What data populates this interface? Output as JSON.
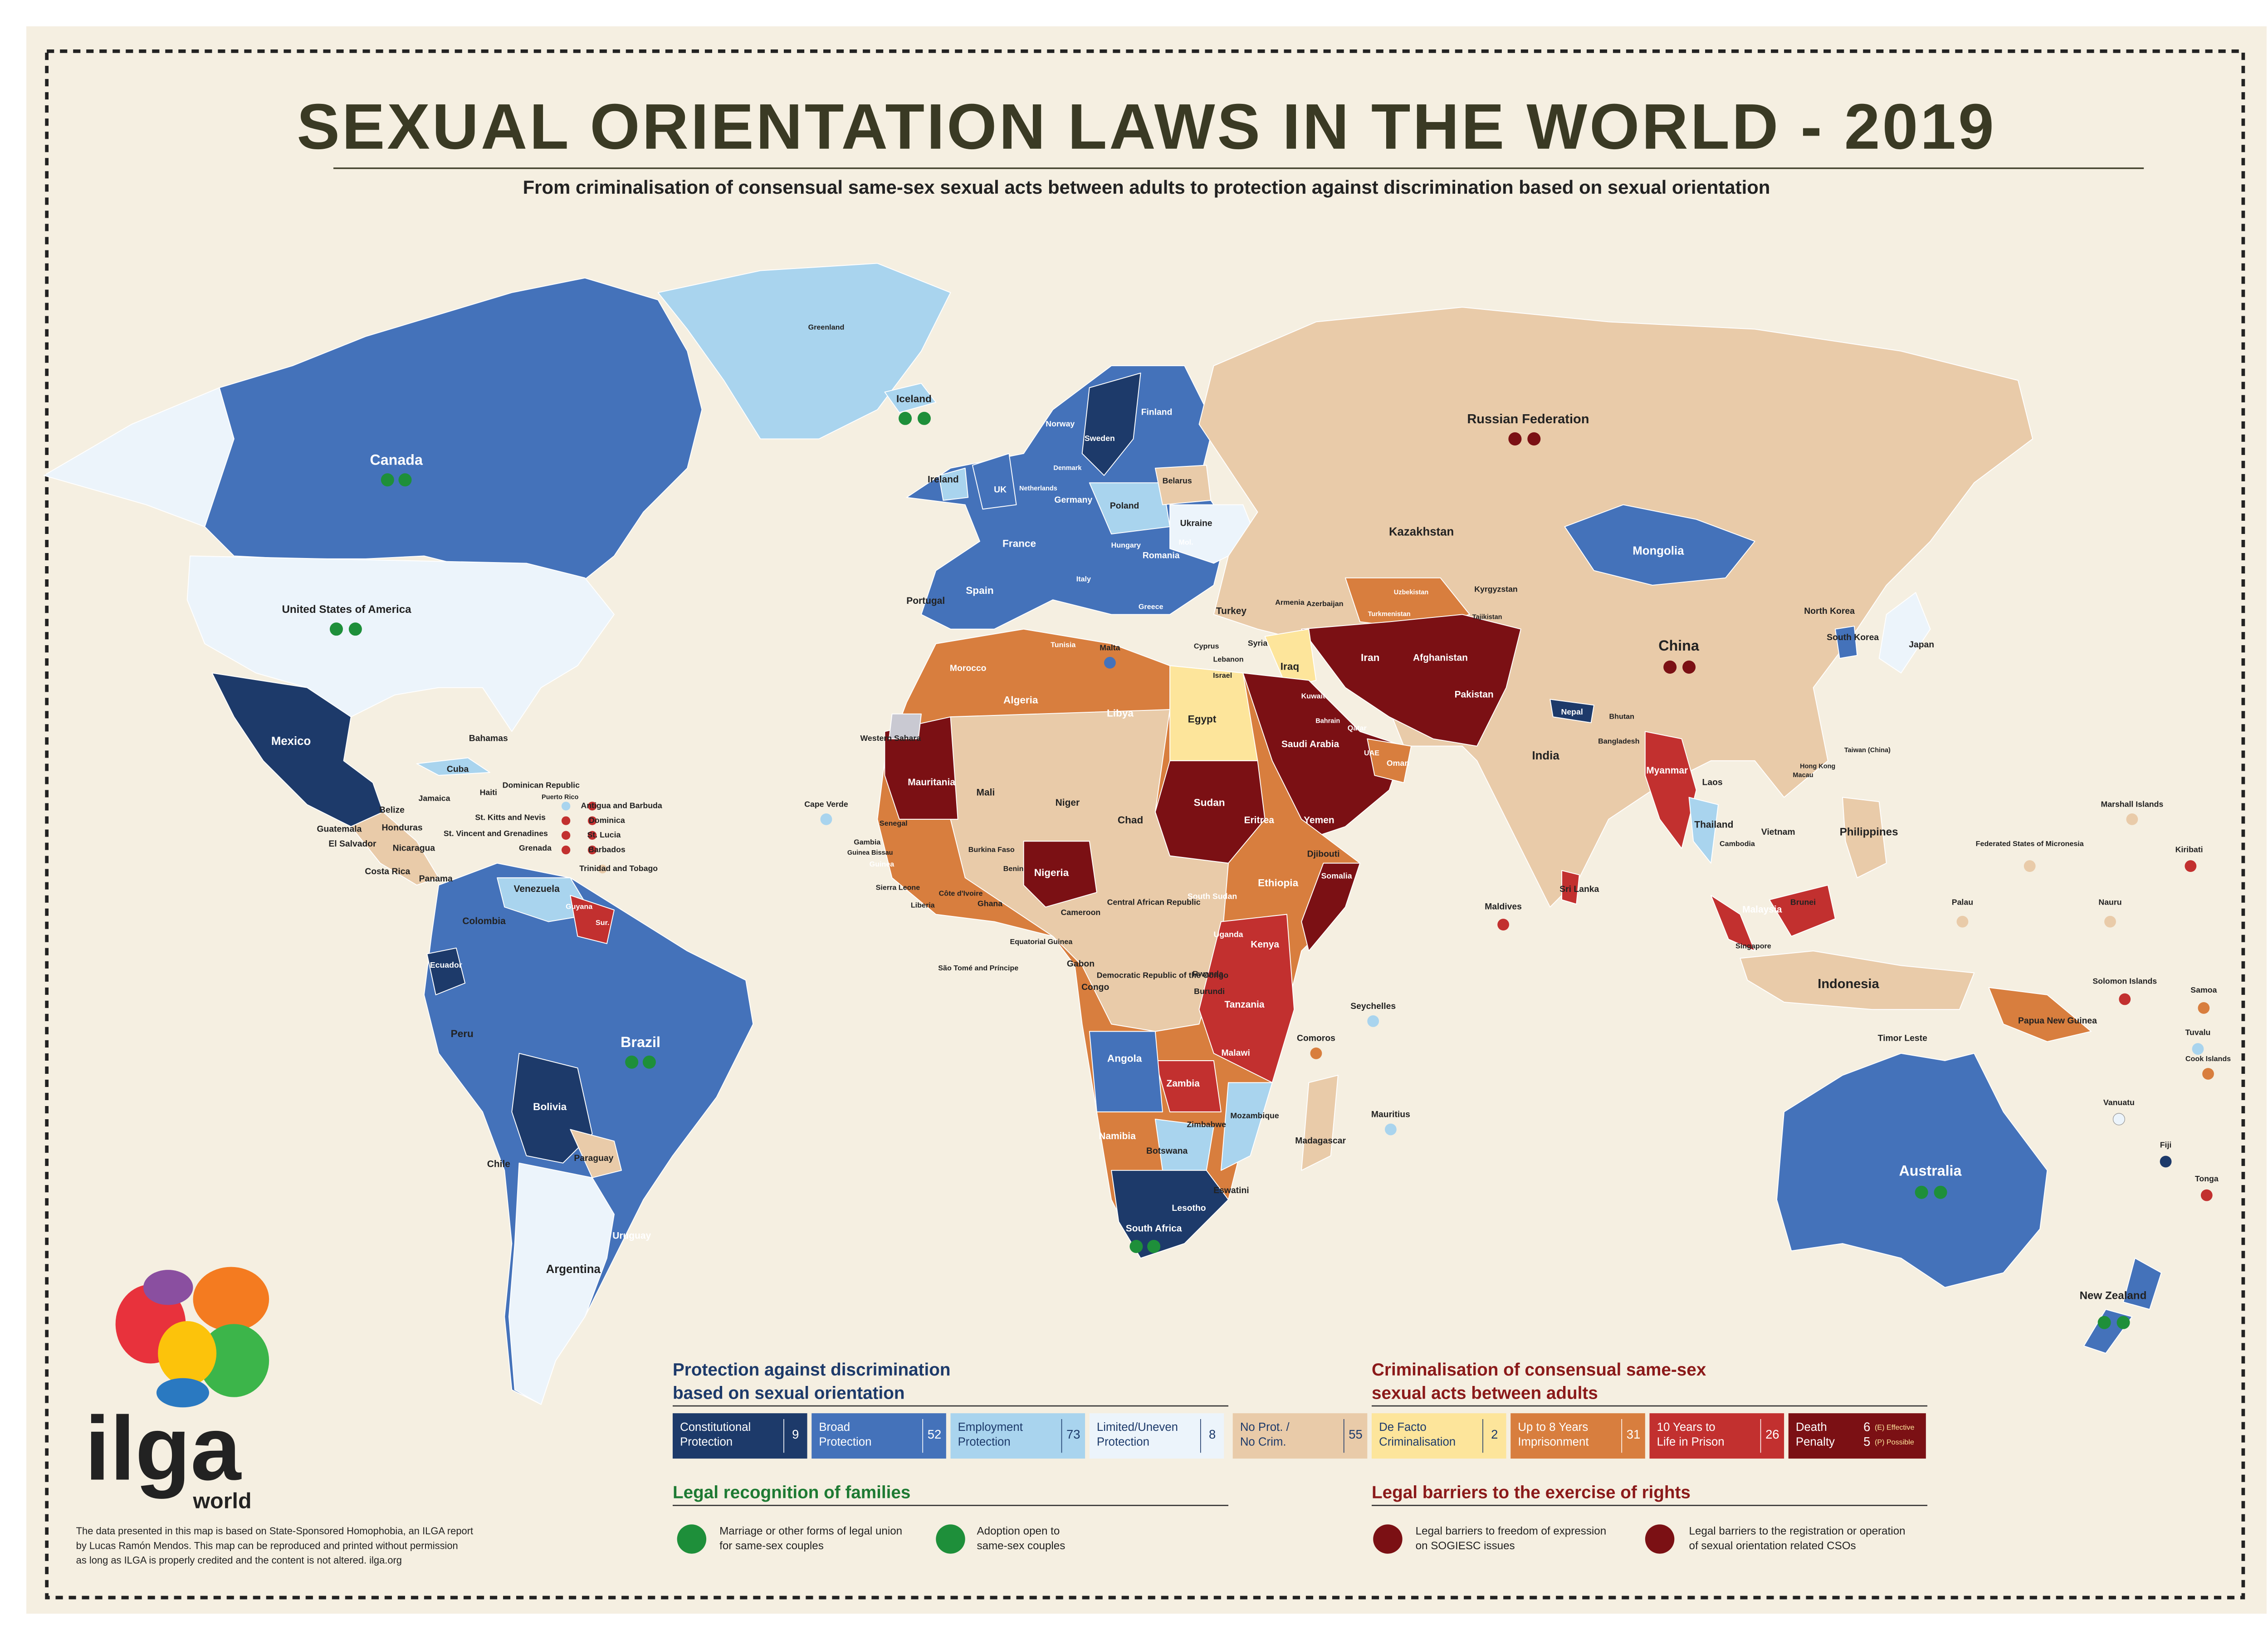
{
  "header": {
    "title": "SEXUAL ORIENTATION LAWS IN THE WORLD - 2019",
    "subtitle": "From criminalisation of consensual same-sex sexual acts between adults to protection against discrimination based on sexual orientation"
  },
  "map": {
    "labels": [
      "Greenland",
      "Iceland",
      "Canada",
      "United States of America",
      "Mexico",
      "Bahamas",
      "Cuba",
      "Jamaica",
      "Haiti",
      "Dominican Republic",
      "Puerto Rico",
      "Antigua and Barbuda",
      "Dominica",
      "St. Kitts and Nevis",
      "St. Vincent and Grenadines",
      "St. Lucia",
      "Grenada",
      "Barbados",
      "Trinidad and Tobago",
      "Belize",
      "Guatemala",
      "Honduras",
      "El Salvador",
      "Nicaragua",
      "Costa Rica",
      "Panama",
      "Venezuela",
      "Guyana",
      "Sur.",
      "Colombia",
      "Ecuador",
      "Peru",
      "Brazil",
      "Bolivia",
      "Paraguay",
      "Chile",
      "Uruguay",
      "Argentina",
      "Ireland",
      "UK",
      "Netherlands",
      "Denmark",
      "Norway",
      "Sweden",
      "Finland",
      "Belarus",
      "Poland",
      "Germany",
      "Ukraine",
      "France",
      "Hungary",
      "Romania",
      "Mol.",
      "Portugal",
      "Spain",
      "Italy",
      "Greece",
      "Malta",
      "Turkey",
      "Cyprus",
      "Lebanon",
      "Israel",
      "Syria",
      "Iraq",
      "Armenia",
      "Azerbaijan",
      "Russian Federation",
      "Kazakhstan",
      "Mongolia",
      "Uzbekistan",
      "Turkmenistan",
      "Kyrgyzstan",
      "Tajikistan",
      "Afghanistan",
      "Pakistan",
      "Iran",
      "Kuwait",
      "Bahrain",
      "Qatar",
      "UAE",
      "Oman",
      "Saudi Arabia",
      "Yemen",
      "China",
      "North Korea",
      "South Korea",
      "Japan",
      "Nepal",
      "Bhutan",
      "Bangladesh",
      "India",
      "Myanmar",
      "Laos",
      "Thailand",
      "Cambodia",
      "Vietnam",
      "Taiwan (China)",
      "Hong Kong",
      "Macau",
      "Philippines",
      "Sri Lanka",
      "Maldives",
      "Malaysia",
      "Brunei",
      "Singapore",
      "Indonesia",
      "Timor Leste",
      "Papua New Guinea",
      "Australia",
      "New Zealand",
      "Marshall Islands",
      "Federated States of Micronesia",
      "Kiribati",
      "Palau",
      "Nauru",
      "Solomon Islands",
      "Samoa",
      "Tuvalu",
      "Cook Islands",
      "Vanuatu",
      "Fiji",
      "Tonga",
      "Morocco",
      "Western Sahara",
      "Algeria",
      "Tunisia",
      "Libya",
      "Egypt",
      "Mauritania",
      "Mali",
      "Niger",
      "Chad",
      "Sudan",
      "Eritrea",
      "Djibouti",
      "Senegal",
      "Gambia",
      "Guinea Bissau",
      "Guinea",
      "Sierra Leone",
      "Liberia",
      "Côte d'Ivoire",
      "Burkina Faso",
      "Ghana",
      "Benin",
      "Nigeria",
      "Cameroon",
      "Central African Republic",
      "South Sudan",
      "Ethiopia",
      "Somalia",
      "Equatorial Guinea",
      "Gabon",
      "Congo",
      "Democratic Republic of the Congo",
      "Uganda",
      "Kenya",
      "Rwanda",
      "Burundi",
      "Tanzania",
      "São Tomé and Príncipe",
      "Cape Verde",
      "Seychelles",
      "Comoros",
      "Angola",
      "Zambia",
      "Malawi",
      "Mozambique",
      "Namibia",
      "Zimbabwe",
      "Botswana",
      "Madagascar",
      "Mauritius",
      "Eswatini",
      "Lesotho",
      "South Africa"
    ]
  },
  "legend": {
    "protection": {
      "title": [
        "Protection against discrimination",
        "based on sexual orientation"
      ],
      "items": [
        {
          "lines": [
            "Constitutional",
            "Protection"
          ],
          "count": 9,
          "color": "#1d3a6a"
        },
        {
          "lines": [
            "Broad",
            "Protection"
          ],
          "count": 52,
          "color": "#4472ba"
        },
        {
          "lines": [
            "Employment",
            "Protection"
          ],
          "count": 73,
          "color": "#a9d4ee"
        },
        {
          "lines": [
            "Limited/Uneven",
            "Protection"
          ],
          "count": 8,
          "color": "#ecf4fb"
        }
      ]
    },
    "neutral": {
      "lines": [
        "No Prot. /",
        "No Crim."
      ],
      "count": 55,
      "color": "#e9cba9"
    },
    "criminalisation": {
      "title": [
        "Criminalisation of consensual same-sex",
        "sexual acts between adults"
      ],
      "items": [
        {
          "lines": [
            "De Facto",
            "Criminalisation"
          ],
          "count": 2,
          "color": "#fde59b"
        },
        {
          "lines": [
            "Up to 8 Years",
            "Imprisonment"
          ],
          "count": 31,
          "color": "#d87e3e"
        },
        {
          "lines": [
            "10 Years to",
            "Life in Prison"
          ],
          "count": 26,
          "color": "#c2302f"
        },
        {
          "lines": [
            "Death",
            "Penalty"
          ],
          "counts": [
            {
              "count": 6,
              "note": "(E) Effective"
            },
            {
              "count": 5,
              "note": "(P) Possible"
            }
          ],
          "color": "#7b1014"
        }
      ]
    },
    "families": {
      "title": "Legal recognition of families",
      "items": [
        [
          "Marriage or other forms of legal union",
          "for same-sex couples"
        ],
        [
          "Adoption open to",
          "same-sex couples"
        ]
      ]
    },
    "barriers": {
      "title": "Legal barriers to the exercise of rights",
      "items": [
        [
          "Legal barriers to freedom of expression",
          "on SOGIESC issues"
        ],
        [
          "Legal barriers to the registration or operation",
          "of sexual orientation related CSOs"
        ]
      ]
    }
  },
  "logo": {
    "name": "ilga",
    "sub": "world"
  },
  "footnote": [
    "The data presented in this map is based on State-Sponsored Homophobia, an ILGA report",
    "by Lucas Ramón Mendos. This map can be reproduced and printed without permission",
    "as long as ILGA is properly credited and the content is not altered. ilga.org"
  ]
}
